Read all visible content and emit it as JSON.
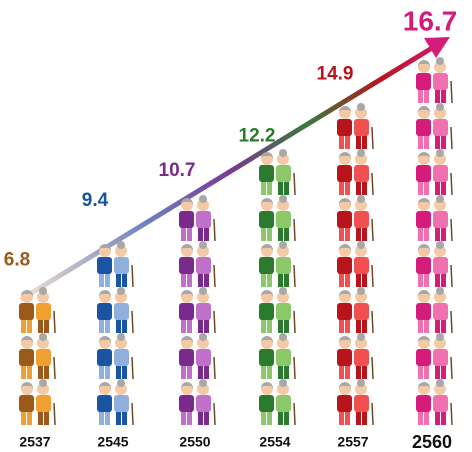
{
  "chart_data": {
    "type": "pictograph",
    "categories": [
      "2537",
      "2545",
      "2550",
      "2554",
      "2557",
      "2560"
    ],
    "values": [
      6.8,
      9.4,
      10.7,
      12.2,
      14.9,
      16.7
    ],
    "colors": [
      "#9b5a1a",
      "#1a55a3",
      "#7a2a8c",
      "#2a7b2e",
      "#b8141c",
      "#d41d7a"
    ],
    "accent_colors": [
      "#f0a030",
      "#8fb0dc",
      "#c070c8",
      "#8cc86a",
      "#f05050",
      "#f070b0"
    ]
  }
}
